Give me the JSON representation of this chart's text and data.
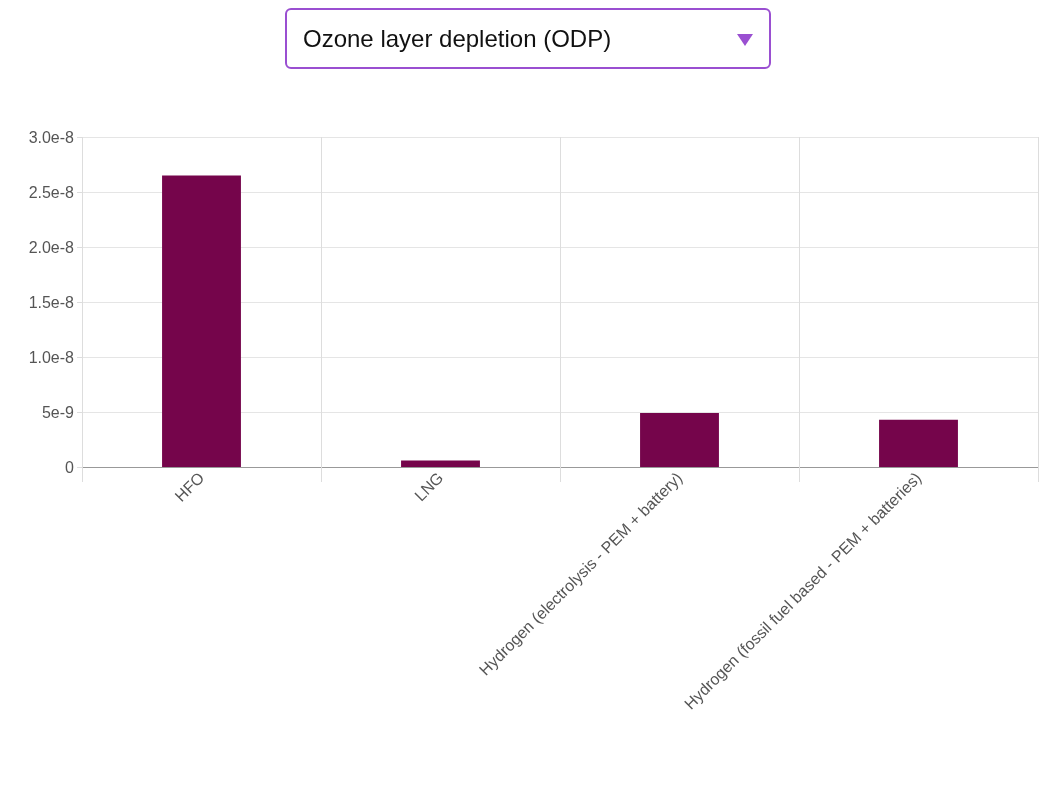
{
  "chart_data": {
    "type": "bar",
    "title": "Ozone layer depletion (ODP)",
    "categories": [
      "HFO",
      "LNG",
      "Hydrogen (electrolysis - PEM + battery)",
      "Hydrogen (fossil fuel based - PEM + batteries)"
    ],
    "values": [
      2.65e-08,
      6e-10,
      4.9e-09,
      4.3e-09
    ],
    "color": "#75054b",
    "ylim": [
      0,
      3e-08
    ],
    "yticks": [
      0,
      {
        "value": 5e-09,
        "label": "5e-9"
      },
      {
        "value": 1e-08,
        "label": "1.0e-8"
      },
      {
        "value": 1.5e-08,
        "label": "1.5e-8"
      },
      {
        "value": 2e-08,
        "label": "2.0e-8"
      },
      {
        "value": 2.5e-08,
        "label": "2.5e-8"
      },
      {
        "value": 3e-08,
        "label": "3.0e-8"
      }
    ],
    "grid": true
  }
}
